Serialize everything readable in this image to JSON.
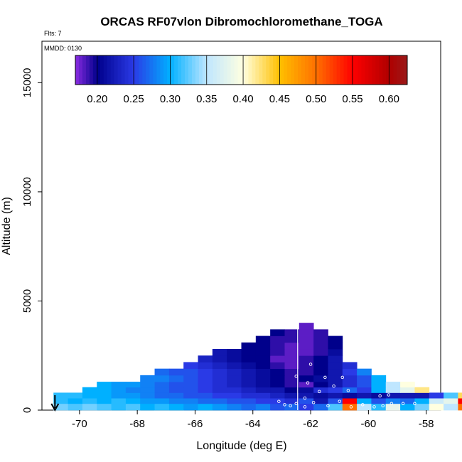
{
  "chart_data": {
    "type": "heatmap",
    "title": "ORCAS RF07vlon Dibromochloromethane_TOGA",
    "flights_label": "Flts: 7",
    "date_label": "MMDD: 0130",
    "xlabel": "Longitude (deg E)",
    "ylabel": "Altitude (m)",
    "xlim": [
      -71.3,
      -57.5
    ],
    "ylim": [
      0,
      16900
    ],
    "x_ticks": [
      -70,
      -68,
      -66,
      -64,
      -62,
      -60,
      -58
    ],
    "y_ticks": [
      0,
      5000,
      10000,
      15000
    ],
    "colorbar": {
      "min": 0.17,
      "max": 0.625,
      "ticks": [
        0.2,
        0.25,
        0.3,
        0.35,
        0.4,
        0.45,
        0.5,
        0.55,
        0.6
      ],
      "tick_labels": [
        "0.20",
        "0.25",
        "0.30",
        "0.35",
        "0.40",
        "0.45",
        "0.50",
        "0.55",
        "0.60"
      ],
      "stops": [
        {
          "v": 0.17,
          "color": "#8a2be2"
        },
        {
          "v": 0.2,
          "color": "#00008b"
        },
        {
          "v": 0.25,
          "color": "#2a3ae6"
        },
        {
          "v": 0.3,
          "color": "#00b0ff"
        },
        {
          "v": 0.35,
          "color": "#bfe6ff"
        },
        {
          "v": 0.4,
          "color": "#ffffe0"
        },
        {
          "v": 0.45,
          "color": "#ffc000"
        },
        {
          "v": 0.5,
          "color": "#ff7000"
        },
        {
          "v": 0.55,
          "color": "#ff0000"
        },
        {
          "v": 0.6,
          "color": "#b00000"
        },
        {
          "v": 0.625,
          "color": "#9a1a1a"
        }
      ]
    },
    "grid": {
      "x_start": -70.9,
      "x_step": 0.5,
      "layers": [
        {
          "alt_bottom": 0,
          "alt_top": 300,
          "x_start": -70.9,
          "values": [
            0.33,
            0.32,
            0.33,
            0.32,
            0.31,
            0.32,
            0.3,
            0.31,
            0.3,
            0.29,
            0.3,
            0.29,
            0.28,
            0.27,
            0.28,
            0.26,
            0.27,
            0.25,
            0.27,
            0.32,
            0.5,
            0.35,
            0.31,
            0.38,
            0.3,
            0.33,
            0.4,
            0.35,
            0.5,
            0.38
          ]
        },
        {
          "alt_bottom": 300,
          "alt_top": 550,
          "x_start": -70.9,
          "values": [
            0.31,
            0.3,
            0.31,
            0.3,
            0.31,
            0.3,
            0.29,
            0.29,
            0.28,
            0.28,
            0.27,
            0.27,
            0.26,
            0.26,
            0.25,
            0.25,
            0.24,
            0.26,
            0.22,
            0.26,
            0.55,
            0.3,
            0.26,
            0.28,
            0.27,
            0.3,
            0.36,
            0.38,
            0.55,
            0.6,
            0.47
          ]
        },
        {
          "alt_bottom": 550,
          "alt_top": 800,
          "x_start": -70.9,
          "values": [
            0.31,
            0.31,
            0.3,
            0.3,
            0.29,
            0.29,
            0.28,
            0.27,
            0.27,
            0.26,
            0.26,
            0.25,
            0.25,
            0.24,
            0.24,
            0.23,
            0.22,
            0.22,
            0.21,
            0.22,
            0.21,
            0.22,
            0.21,
            0.22,
            0.22,
            0.22,
            0.25,
            0.32,
            0.43,
            0.48
          ]
        },
        {
          "alt_bottom": 800,
          "alt_top": 1050,
          "x_start": -69.9,
          "values": [
            0.3,
            0.3,
            0.29,
            0.28,
            0.28,
            0.27,
            0.26,
            0.26,
            0.25,
            0.24,
            0.24,
            0.23,
            0.22,
            0.22,
            0.2,
            0.21,
            0.24,
            0.25,
            0.27,
            0.25,
            0.3,
            0.35,
            0.38,
            0.42
          ]
        },
        {
          "alt_bottom": 1050,
          "alt_top": 1300,
          "x_start": -69.4,
          "values": [
            0.3,
            0.29,
            0.29,
            0.28,
            0.27,
            0.26,
            0.26,
            0.25,
            0.24,
            0.23,
            0.22,
            0.21,
            0.2,
            0.19,
            0.18,
            0.2,
            0.22,
            0.24,
            0.26,
            0.3,
            0.35,
            0.4
          ]
        },
        {
          "alt_bottom": 1300,
          "alt_top": 1600,
          "x_start": -67.9,
          "values": [
            0.28,
            0.28,
            0.27,
            0.26,
            0.25,
            0.24,
            0.23,
            0.22,
            0.21,
            0.2,
            0.19,
            0.2,
            0.21,
            0.22,
            0.24,
            0.26,
            0.3
          ]
        },
        {
          "alt_bottom": 1600,
          "alt_top": 1900,
          "x_start": -67.4,
          "values": [
            0.27,
            0.26,
            0.26,
            0.25,
            0.24,
            0.23,
            0.22,
            0.21,
            0.2,
            0.19,
            0.19,
            0.2,
            0.22,
            0.25,
            0.28
          ]
        },
        {
          "alt_bottom": 1900,
          "alt_top": 2200,
          "x_start": -66.4,
          "values": [
            0.25,
            0.24,
            0.23,
            0.22,
            0.21,
            0.2,
            0.19,
            0.18,
            0.19,
            0.2,
            0.22,
            0.24
          ]
        },
        {
          "alt_bottom": 2200,
          "alt_top": 2500,
          "x_start": -65.9,
          "values": [
            0.23,
            0.22,
            0.21,
            0.2,
            0.2,
            0.18,
            0.18,
            0.19,
            0.2,
            0.22
          ]
        },
        {
          "alt_bottom": 2500,
          "alt_top": 2800,
          "x_start": -65.4,
          "values": [
            0.22,
            0.21,
            0.2,
            0.2,
            0.19,
            0.18,
            0.18,
            0.19,
            0.21
          ]
        },
        {
          "alt_bottom": 2800,
          "alt_top": 3100,
          "x_start": -64.4,
          "values": [
            0.2,
            0.2,
            0.19,
            0.18,
            0.18,
            0.19,
            0.2
          ]
        },
        {
          "alt_bottom": 3100,
          "alt_top": 3400,
          "x_start": -63.9,
          "values": [
            0.2,
            0.19,
            0.19,
            0.18,
            0.19,
            0.2
          ]
        },
        {
          "alt_bottom": 3400,
          "alt_top": 3700,
          "x_start": -63.4,
          "values": [
            0.2,
            0.19,
            0.18,
            0.19
          ]
        },
        {
          "alt_bottom": 3700,
          "alt_top": 4000,
          "x_start": -62.4,
          "values": [
            0.18
          ]
        }
      ]
    },
    "profile_line": {
      "x": -62.45,
      "alt_top": 4050
    },
    "observations": [
      {
        "x": -62.9,
        "y": 250
      },
      {
        "x": -62.7,
        "y": 200
      },
      {
        "x": -62.5,
        "y": 300
      },
      {
        "x": -62.2,
        "y": 150
      },
      {
        "x": -61.9,
        "y": 350
      },
      {
        "x": -61.4,
        "y": 200
      },
      {
        "x": -61.0,
        "y": 400
      },
      {
        "x": -60.6,
        "y": 150
      },
      {
        "x": -60.2,
        "y": 250
      },
      {
        "x": -59.8,
        "y": 150
      },
      {
        "x": -59.5,
        "y": 200
      },
      {
        "x": -59.2,
        "y": 300
      },
      {
        "x": -58.8,
        "y": 300
      },
      {
        "x": -58.4,
        "y": 300
      },
      {
        "x": -63.1,
        "y": 400
      },
      {
        "x": -61.7,
        "y": 850
      },
      {
        "x": -61.2,
        "y": 1100
      },
      {
        "x": -60.7,
        "y": 900
      },
      {
        "x": -59.6,
        "y": 650
      },
      {
        "x": -62.5,
        "y": 1550
      },
      {
        "x": -61.5,
        "y": 1500
      },
      {
        "x": -60.9,
        "y": 1500
      },
      {
        "x": -62.1,
        "y": 1250
      },
      {
        "x": -62.0,
        "y": 2100
      },
      {
        "x": -62.2,
        "y": 550
      },
      {
        "x": -59.3,
        "y": 700
      }
    ],
    "ground_arrow_x": -70.85
  }
}
